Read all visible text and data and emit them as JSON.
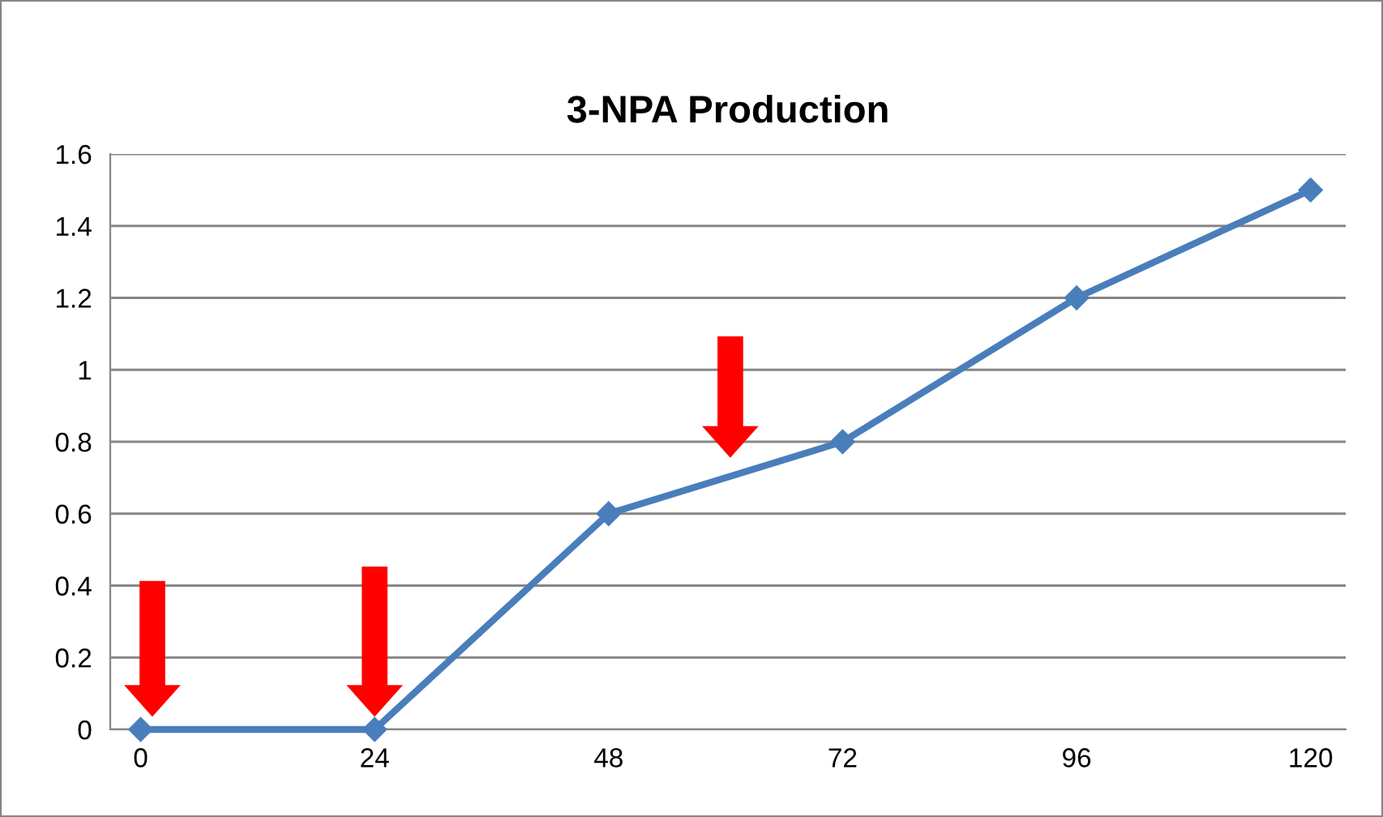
{
  "chart_data": {
    "type": "line",
    "title": "3-NPA Production",
    "categories": [
      "0",
      "24",
      "48",
      "72",
      "96",
      "120"
    ],
    "series": [
      {
        "color": "#4a7ebb",
        "values": [
          0,
          0,
          0.6,
          0.8,
          1.2,
          1.5
        ]
      }
    ],
    "ylim": [
      0,
      1.6
    ],
    "yticks": [
      0,
      0.2,
      0.4,
      0.6,
      0.8,
      1,
      1.2,
      1.4,
      1.6
    ],
    "grid": "y",
    "marker": "diamond",
    "line_style": "solid"
  }
}
